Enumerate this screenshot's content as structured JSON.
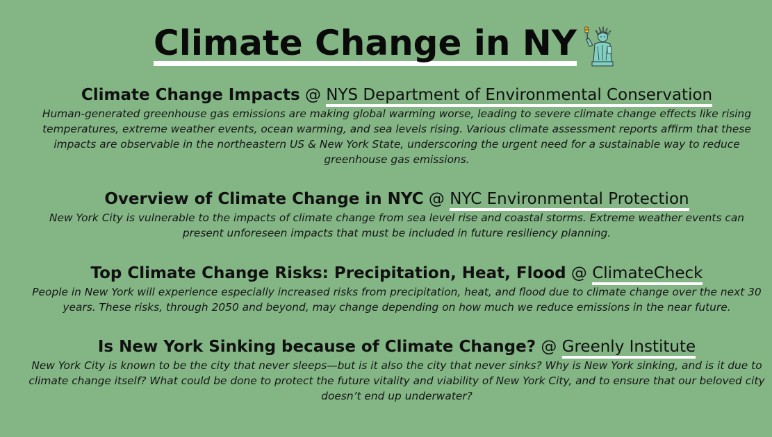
{
  "page": {
    "title": "Climate Change in NY",
    "title_icon": "statue-of-liberty-icon"
  },
  "sections": [
    {
      "title": "Climate Change Impacts",
      "at": "@",
      "source": "NYS Department of Environmental Conservation",
      "description": "Human-generated greenhouse gas emissions are making global warming worse, leading to severe climate change effects like rising temperatures, extreme weather events, ocean warming, and sea levels rising. Various climate assessment reports affirm that these impacts are observable in the northeastern US & New York State, underscoring the urgent need for a sustainable way to reduce greenhouse gas emissions."
    },
    {
      "title": "Overview of Climate Change in NYC",
      "at": "@",
      "source": "NYC Environmental Protection",
      "description": "New York City is vulnerable to the impacts of climate change from sea level rise and coastal storms. Extreme weather events can present unforeseen impacts that must be included in future resiliency planning."
    },
    {
      "title": "Top Climate Change Risks: Precipitation, Heat, Flood",
      "at": "@",
      "source": "ClimateCheck",
      "description": "People in New York will experience especially increased risks from precipitation, heat, and flood due to climate change over the next 30 years. These risks, through 2050 and beyond, may change depending on how much we reduce emissions in the near future."
    },
    {
      "title": "Is New York Sinking because of Climate Change?",
      "at": "@",
      "source": "Greenly Institute",
      "description": "New York City is known to be the city that never sleeps—but is it also the city that never sinks? Why is New York sinking, and is it due to climate change itself? What could be done to protect the future vitality and viability of New York City, and to ensure that our beloved city doesn’t end up underwater?"
    }
  ],
  "colors": {
    "background": "#83b585",
    "underline": "#ffffff",
    "text": "#111111"
  }
}
